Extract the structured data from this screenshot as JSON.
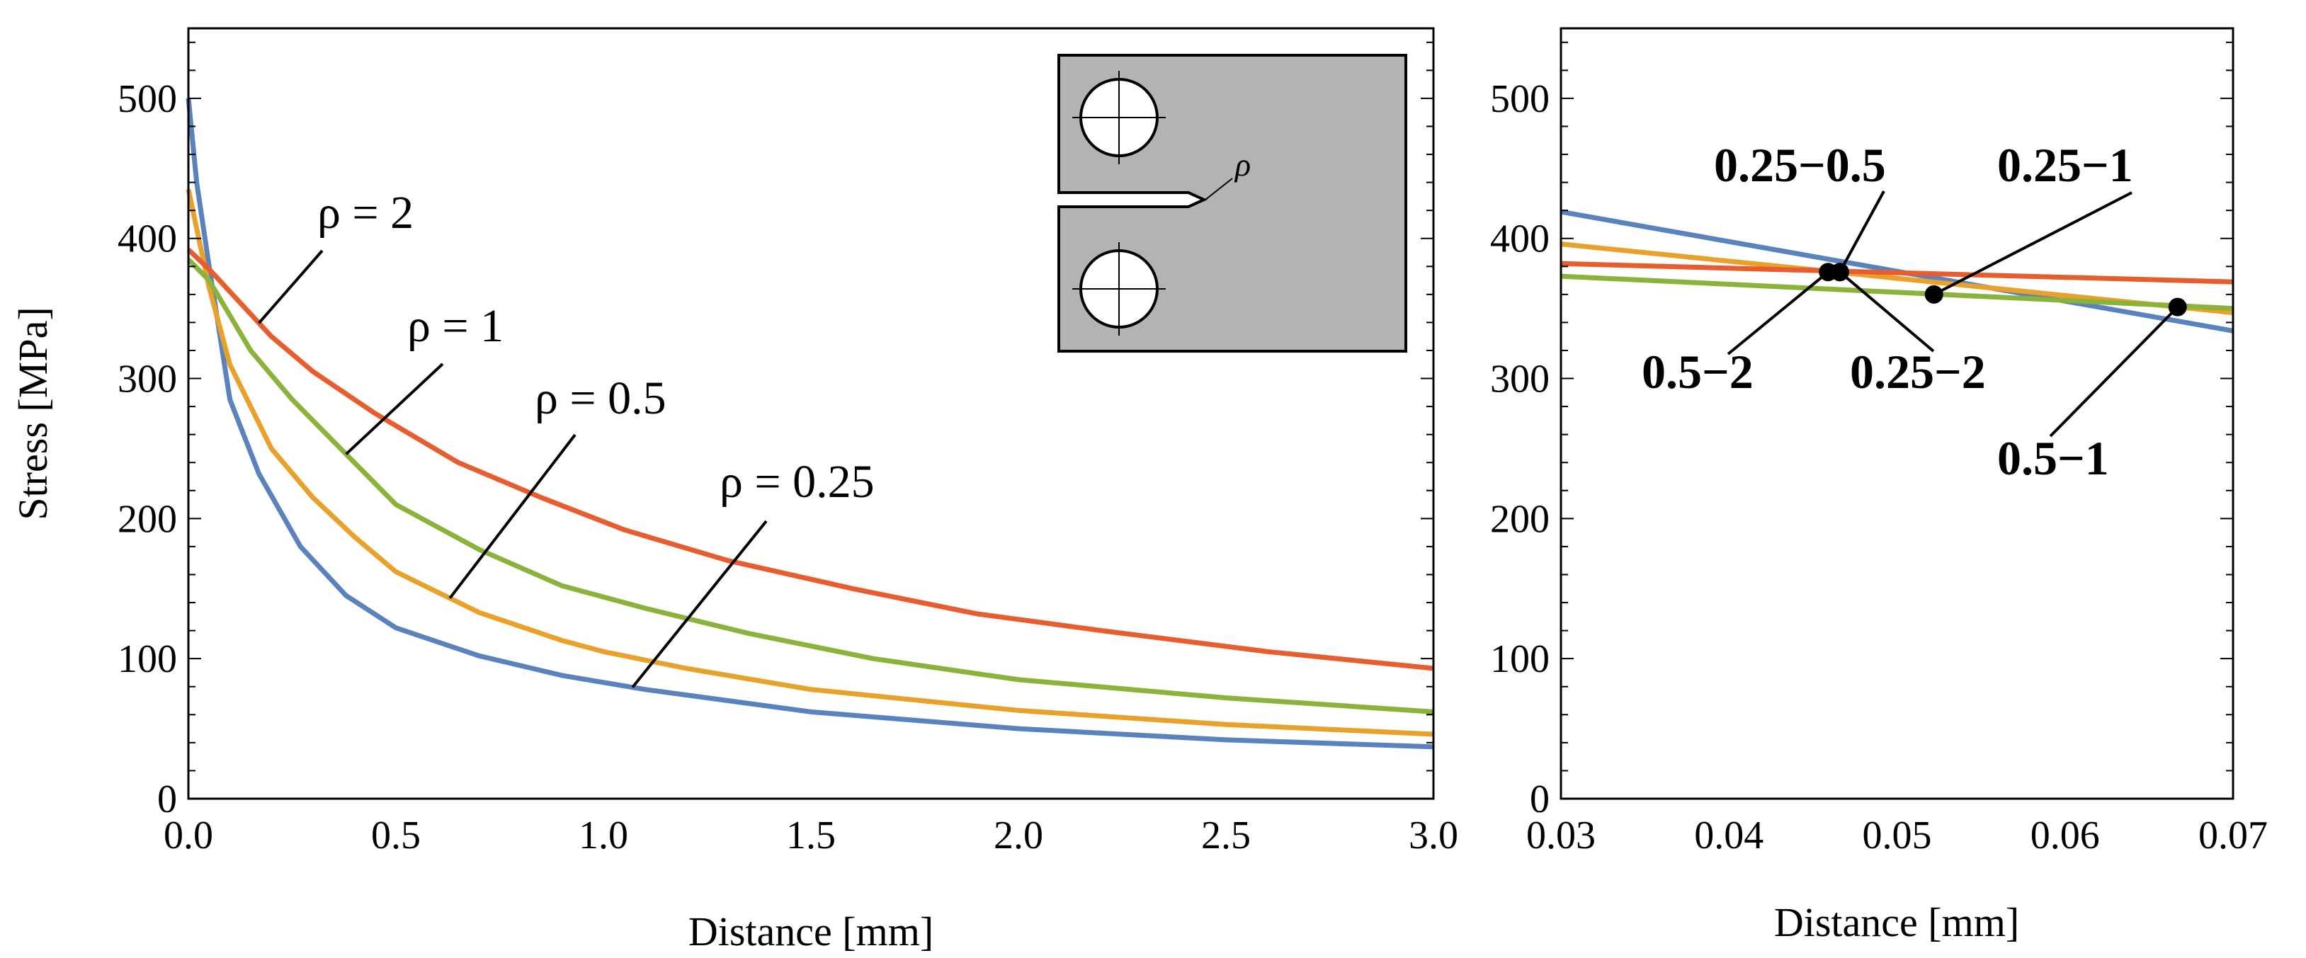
{
  "chart_data": [
    {
      "type": "line",
      "title": "",
      "xlabel": "Distance [mm]",
      "ylabel": "Stress [MPa]",
      "xlim": [
        0,
        3
      ],
      "ylim": [
        0,
        550
      ],
      "xticks": [
        "0.0",
        "0.5",
        "1.0",
        "1.5",
        "2.0",
        "2.5",
        "3.0"
      ],
      "yticks": [
        "0",
        "100",
        "200",
        "300",
        "400",
        "500"
      ],
      "series": [
        {
          "name": "ρ = 0.25",
          "color": "#5a83bd",
          "x": [
            0,
            0.02,
            0.05,
            0.1,
            0.17,
            0.27,
            0.38,
            0.5,
            0.7,
            0.9,
            1.1,
            1.5,
            2.0,
            2.5,
            3.0
          ],
          "y": [
            500,
            440,
            380,
            285,
            232,
            180,
            145,
            122,
            102,
            88,
            78,
            62,
            50,
            42,
            37
          ]
        },
        {
          "name": "ρ = 0.5",
          "color": "#e8a22b",
          "x": [
            0,
            0.05,
            0.1,
            0.2,
            0.3,
            0.4,
            0.5,
            0.7,
            0.9,
            1.0,
            1.2,
            1.5,
            2.0,
            2.5,
            3.0
          ],
          "y": [
            435,
            365,
            310,
            250,
            215,
            187,
            162,
            133,
            113,
            105,
            93,
            78,
            63,
            53,
            46
          ]
        },
        {
          "name": "ρ = 1",
          "color": "#8bb23a",
          "x": [
            0,
            0.05,
            0.1,
            0.15,
            0.25,
            0.35,
            0.5,
            0.7,
            0.9,
            1.1,
            1.35,
            1.65,
            2.0,
            2.5,
            3.0
          ],
          "y": [
            385,
            370,
            345,
            320,
            285,
            255,
            210,
            178,
            152,
            136,
            118,
            100,
            85,
            72,
            62
          ]
        },
        {
          "name": "ρ = 2",
          "color": "#e85d2f",
          "x": [
            0,
            0.05,
            0.1,
            0.2,
            0.3,
            0.45,
            0.65,
            0.85,
            1.05,
            1.3,
            1.6,
            1.9,
            2.2,
            2.6,
            3.0
          ],
          "y": [
            392,
            378,
            362,
            330,
            305,
            275,
            240,
            215,
            192,
            170,
            150,
            132,
            120,
            105,
            93
          ]
        }
      ],
      "annotations": [
        {
          "text": "ρ = 2"
        },
        {
          "text": "ρ = 1"
        },
        {
          "text": "ρ = 0.5"
        },
        {
          "text": "ρ = 0.25"
        }
      ],
      "inset": {
        "label": "ρ"
      }
    },
    {
      "type": "line",
      "title": "",
      "xlabel": "Distance [mm]",
      "ylabel": "",
      "xlim": [
        0.03,
        0.07
      ],
      "ylim": [
        0,
        550
      ],
      "xticks": [
        "0.03",
        "0.04",
        "0.05",
        "0.06",
        "0.07"
      ],
      "yticks": [
        "0",
        "100",
        "200",
        "300",
        "400",
        "500"
      ],
      "series": [
        {
          "name": "ρ = 0.25",
          "color": "#5a83bd",
          "x": [
            0.03,
            0.07
          ],
          "y": [
            419,
            334
          ]
        },
        {
          "name": "ρ = 0.5",
          "color": "#e8a22b",
          "x": [
            0.03,
            0.07
          ],
          "y": [
            396,
            347
          ]
        },
        {
          "name": "ρ = 1",
          "color": "#8bb23a",
          "x": [
            0.03,
            0.07
          ],
          "y": [
            373,
            350
          ]
        },
        {
          "name": "ρ = 2",
          "color": "#e85d2f",
          "x": [
            0.03,
            0.07
          ],
          "y": [
            382,
            369
          ]
        }
      ],
      "points": [
        {
          "label": "0.5−2",
          "x": 0.0459,
          "y": 376
        },
        {
          "label": "0.25−0.5",
          "x": 0.0466,
          "y": 376
        },
        {
          "label": "0.25−2",
          "x": 0.0466,
          "y": 376
        },
        {
          "label": "0.25−1",
          "x": 0.0522,
          "y": 360
        },
        {
          "label": "0.5−1",
          "x": 0.0667,
          "y": 351
        }
      ]
    }
  ]
}
